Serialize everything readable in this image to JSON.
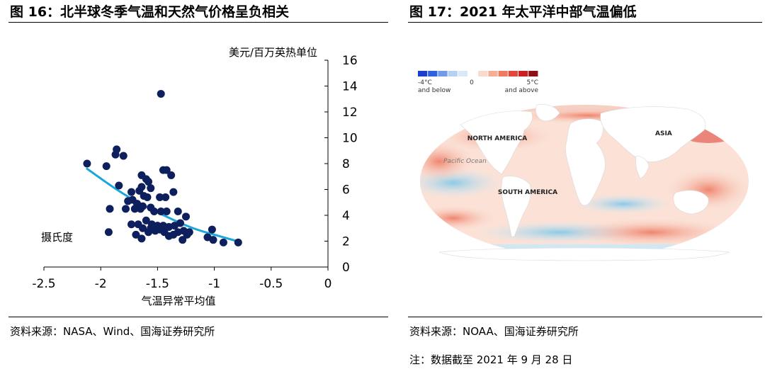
{
  "figures": [
    {
      "title": "图 16：北半球冬季气温和天然气价格呈负相关",
      "source": "资料来源：NASA、Wind、国海证券研究所"
    },
    {
      "title": "图 17：2021 年太平洋中部气温偏低",
      "source": "资料来源：NOAA、国海证券研究所",
      "note": "注：数据截至 2021 年 9 月 28 日"
    }
  ],
  "chart_data": {
    "type": "scatter",
    "title": "",
    "xlabel": "气温异常平均值",
    "ylabel_right": "美元/百万英热单位",
    "left_label": "摄氏度",
    "xlim": [
      -2.5,
      0
    ],
    "ylim": [
      0,
      16
    ],
    "x_ticks": [
      -2.5,
      -2,
      -1.5,
      -1,
      -0.5,
      0
    ],
    "x_tick_labels": [
      "-2.5",
      "-2",
      "-1.5",
      "-1",
      "-0.5",
      "0"
    ],
    "y_ticks": [
      0,
      2,
      4,
      6,
      8,
      10,
      12,
      14,
      16
    ],
    "y_tick_labels": [
      "0",
      "2",
      "4",
      "6",
      "8",
      "10",
      "12",
      "14",
      "16"
    ],
    "point_color": "#0d1f5c",
    "trend_color": "#1aa6dc",
    "points": [
      [
        -2.12,
        8.0
      ],
      [
        -1.95,
        7.8
      ],
      [
        -1.86,
        9.1
      ],
      [
        -1.87,
        8.7
      ],
      [
        -1.8,
        8.6
      ],
      [
        -1.47,
        13.4
      ],
      [
        -1.45,
        7.5
      ],
      [
        -1.42,
        7.5
      ],
      [
        -1.38,
        7.1
      ],
      [
        -1.64,
        7.1
      ],
      [
        -1.6,
        6.8
      ],
      [
        -1.58,
        6.6
      ],
      [
        -1.64,
        6.2
      ],
      [
        -1.56,
        6.1
      ],
      [
        -1.73,
        5.8
      ],
      [
        -1.66,
        5.9
      ],
      [
        -1.62,
        5.5
      ],
      [
        -1.59,
        5.4
      ],
      [
        -1.48,
        5.4
      ],
      [
        -1.43,
        5.4
      ],
      [
        -1.36,
        5.8
      ],
      [
        -1.84,
        6.3
      ],
      [
        -1.72,
        5.2
      ],
      [
        -1.68,
        4.9
      ],
      [
        -1.76,
        5.1
      ],
      [
        -1.63,
        4.7
      ],
      [
        -1.56,
        4.6
      ],
      [
        -1.53,
        4.3
      ],
      [
        -1.47,
        4.3
      ],
      [
        -1.42,
        4.3
      ],
      [
        -1.32,
        4.3
      ],
      [
        -1.92,
        4.5
      ],
      [
        -1.78,
        4.5
      ],
      [
        -1.7,
        4.5
      ],
      [
        -1.65,
        4.5
      ],
      [
        -1.6,
        3.6
      ],
      [
        -1.55,
        3.3
      ],
      [
        -1.5,
        3.2
      ],
      [
        -1.45,
        3.2
      ],
      [
        -1.4,
        3.1
      ],
      [
        -1.35,
        3.2
      ],
      [
        -1.3,
        3.4
      ],
      [
        -1.25,
        3.9
      ],
      [
        -1.73,
        3.3
      ],
      [
        -1.67,
        3.3
      ],
      [
        -1.63,
        3.0
      ],
      [
        -1.58,
        2.7
      ],
      [
        -1.52,
        2.8
      ],
      [
        -1.48,
        2.9
      ],
      [
        -1.44,
        2.7
      ],
      [
        -1.4,
        2.4
      ],
      [
        -1.36,
        2.5
      ],
      [
        -1.32,
        2.7
      ],
      [
        -1.27,
        2.8
      ],
      [
        -1.24,
        2.5
      ],
      [
        -1.93,
        2.7
      ],
      [
        -1.69,
        2.5
      ],
      [
        -1.64,
        2.2
      ],
      [
        -1.56,
        3.0
      ],
      [
        -1.28,
        2.1
      ],
      [
        -1.22,
        2.7
      ],
      [
        -1.06,
        2.3
      ],
      [
        -1.02,
        2.9
      ],
      [
        -1.01,
        2.1
      ],
      [
        -0.92,
        1.9
      ],
      [
        -0.79,
        1.9
      ]
    ],
    "trend": [
      [
        -2.12,
        7.6
      ],
      [
        -1.8,
        5.6
      ],
      [
        -1.5,
        4.2
      ],
      [
        -1.2,
        3.0
      ],
      [
        -1.0,
        2.5
      ],
      [
        -0.8,
        2.0
      ]
    ]
  },
  "map": {
    "legend_labels": [
      "-4°C",
      "and below",
      "0",
      "5°C",
      "and above"
    ],
    "legend_colors": [
      "#1a3fcf",
      "#2d62e0",
      "#6f9be8",
      "#b5d0f2",
      "#dbe9f6",
      "#ffffff",
      "#fbd9cc",
      "#f5ad95",
      "#ee7a62",
      "#e3473a",
      "#cc1f22",
      "#8f0f14"
    ],
    "labels": [
      "NORTH AMERICA",
      "Pacific Ocean",
      "ASIA",
      "SOUTH AMERICA"
    ]
  }
}
